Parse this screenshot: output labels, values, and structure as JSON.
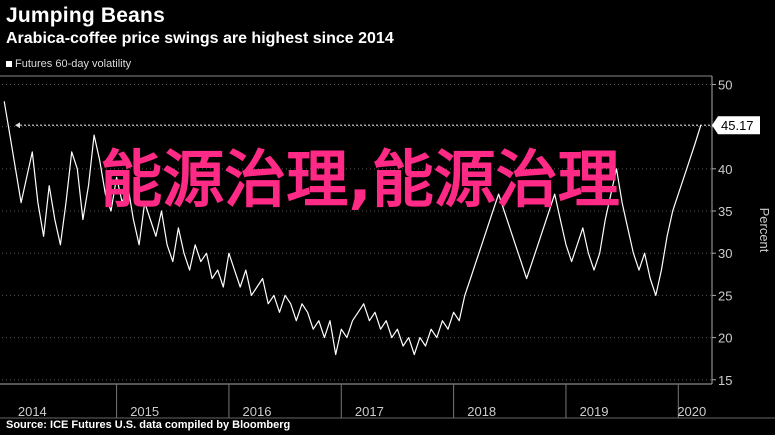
{
  "header": {
    "title": "Jumping Beans",
    "subtitle": "Arabica-coffee price swings are highest since 2014"
  },
  "legend": {
    "label": "Futures 60-day volatility"
  },
  "footer": {
    "source": "Source: ICE Futures U.S. data compiled by Bloomberg"
  },
  "overlay": {
    "text": "能源治理,能源治理"
  },
  "colors": {
    "background": "#000000",
    "line": "#ffffff",
    "grid": "#555555",
    "overlay": "#ff2a86"
  },
  "chart_data": {
    "type": "line",
    "title": "Jumping Beans",
    "subtitle": "Arabica-coffee price swings are highest since 2014",
    "ylabel": "Percent",
    "y_axis_side": "right",
    "ylim": [
      14.5,
      51
    ],
    "yticks": [
      15,
      20,
      25,
      30,
      35,
      40,
      45,
      50
    ],
    "xlim": [
      2013.98,
      2020.3
    ],
    "xtick_labels": [
      "2014",
      "2015",
      "2016",
      "2017",
      "2018",
      "2019",
      "2020"
    ],
    "xtick_label_positions": [
      2014.25,
      2015.25,
      2016.25,
      2017.25,
      2018.25,
      2019.25,
      2020.12
    ],
    "year_boundaries": [
      2015.0,
      2016.0,
      2017.0,
      2018.0,
      2019.0,
      2020.0
    ],
    "grid": "horizontal dotted",
    "reference_line": {
      "value": 45.17,
      "style": "dotted",
      "label": "45.17"
    },
    "legend_position": "top-left",
    "series": [
      {
        "name": "Futures 60-day volatility",
        "x": [
          2014.0,
          2014.05,
          2014.1,
          2014.15,
          2014.2,
          2014.25,
          2014.3,
          2014.35,
          2014.4,
          2014.45,
          2014.5,
          2014.55,
          2014.6,
          2014.65,
          2014.7,
          2014.75,
          2014.8,
          2014.85,
          2014.9,
          2014.95,
          2015.0,
          2015.05,
          2015.1,
          2015.15,
          2015.2,
          2015.25,
          2015.3,
          2015.35,
          2015.4,
          2015.45,
          2015.5,
          2015.55,
          2015.6,
          2015.65,
          2015.7,
          2015.75,
          2015.8,
          2015.85,
          2015.9,
          2015.95,
          2016.0,
          2016.05,
          2016.1,
          2016.15,
          2016.2,
          2016.25,
          2016.3,
          2016.35,
          2016.4,
          2016.45,
          2016.5,
          2016.55,
          2016.6,
          2016.65,
          2016.7,
          2016.75,
          2016.8,
          2016.85,
          2016.9,
          2016.95,
          2017.0,
          2017.05,
          2017.1,
          2017.15,
          2017.2,
          2017.25,
          2017.3,
          2017.35,
          2017.4,
          2017.45,
          2017.5,
          2017.55,
          2017.6,
          2017.65,
          2017.7,
          2017.75,
          2017.8,
          2017.85,
          2017.9,
          2017.95,
          2018.0,
          2018.05,
          2018.1,
          2018.15,
          2018.2,
          2018.25,
          2018.3,
          2018.35,
          2018.4,
          2018.45,
          2018.5,
          2018.55,
          2018.6,
          2018.65,
          2018.7,
          2018.75,
          2018.8,
          2018.85,
          2018.9,
          2018.95,
          2019.0,
          2019.05,
          2019.1,
          2019.15,
          2019.2,
          2019.25,
          2019.3,
          2019.35,
          2019.4,
          2019.45,
          2019.5,
          2019.55,
          2019.6,
          2019.65,
          2019.7,
          2019.75,
          2019.8,
          2019.85,
          2019.9,
          2019.95,
          2020.0,
          2020.05,
          2020.1,
          2020.15,
          2020.2
        ],
        "y": [
          48,
          44,
          40,
          36,
          39,
          42,
          36,
          32,
          38,
          34,
          31,
          36,
          42,
          40,
          34,
          38,
          44,
          41,
          37,
          35,
          39,
          36,
          38,
          34,
          31,
          36,
          34,
          32,
          35,
          31,
          29,
          33,
          30,
          28,
          31,
          29,
          30,
          27,
          28,
          26,
          30,
          28,
          26,
          28,
          25,
          26,
          27,
          24,
          25,
          23,
          25,
          24,
          22,
          24,
          23,
          21,
          22,
          20,
          22,
          18,
          21,
          20,
          22,
          23,
          24,
          22,
          23,
          21,
          22,
          20,
          21,
          19,
          20,
          18,
          20,
          19,
          21,
          20,
          22,
          21,
          23,
          22,
          25,
          27,
          29,
          31,
          33,
          35,
          37,
          35,
          33,
          31,
          29,
          27,
          29,
          31,
          33,
          35,
          37,
          34,
          31,
          29,
          31,
          33,
          30,
          28,
          30,
          34,
          37,
          40,
          36,
          33,
          30,
          28,
          30,
          27,
          25,
          28,
          32,
          35,
          37,
          39,
          41,
          43,
          45.17
        ]
      }
    ]
  }
}
